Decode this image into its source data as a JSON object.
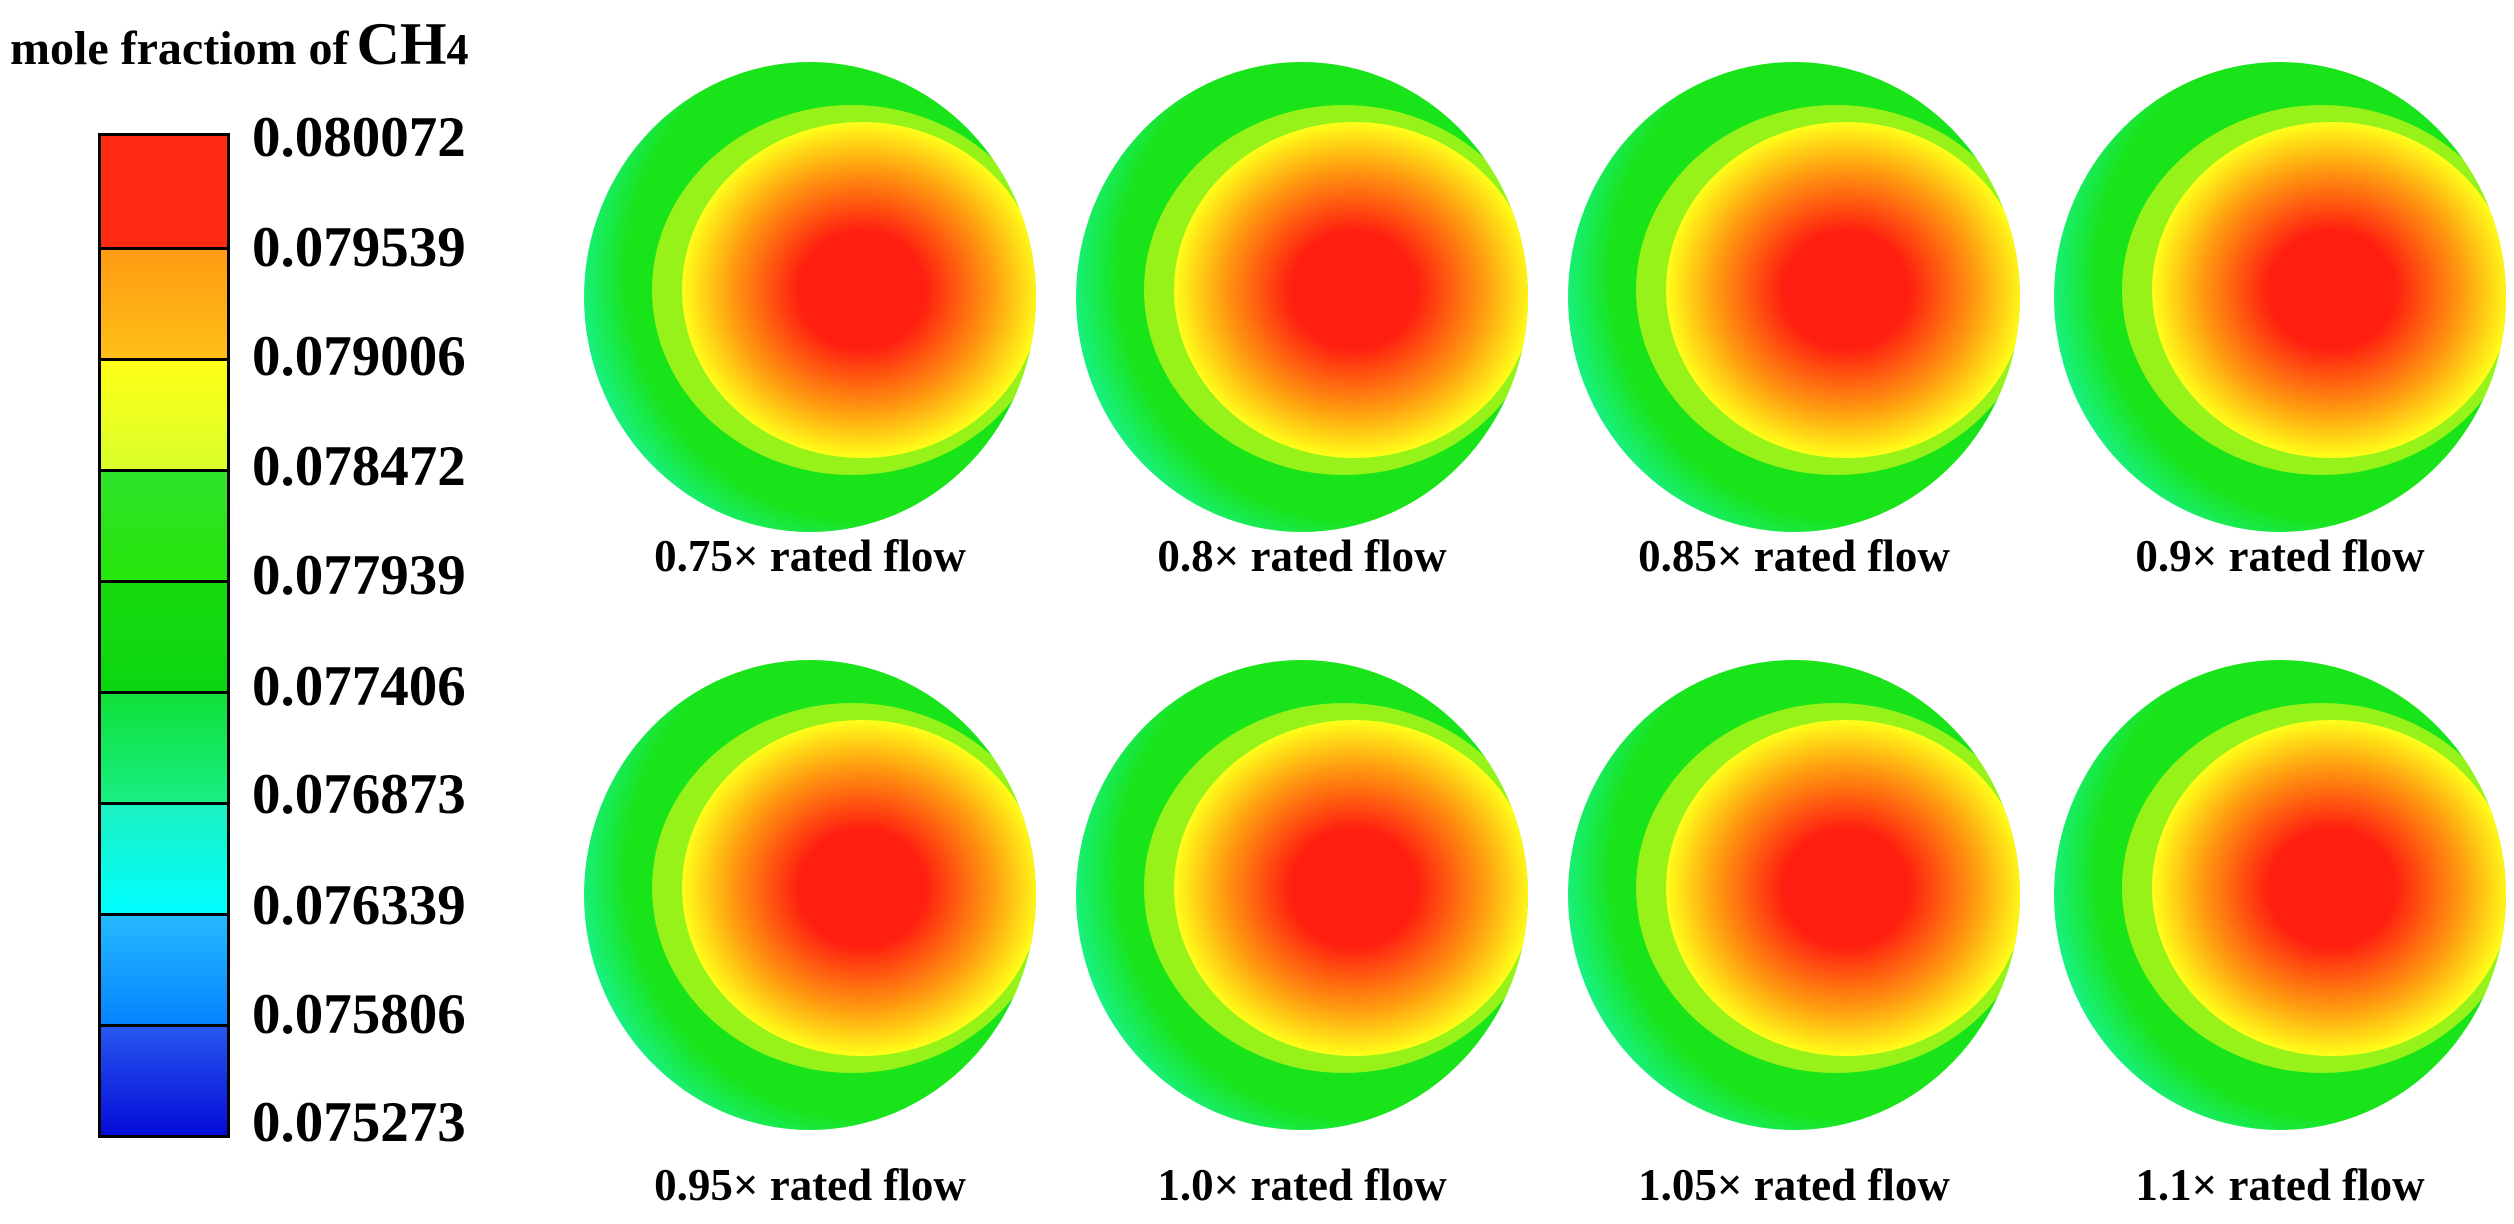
{
  "title": {
    "text": "mole fractiom of",
    "formula_main": "CH",
    "formula_sub": "4"
  },
  "colorbar": {
    "labels": [
      "0.080072",
      "0.079539",
      "0.079006",
      "0.078472",
      "0.077939",
      "0.077406",
      "0.076873",
      "0.076339",
      "0.075806",
      "0.075273"
    ],
    "bands": [
      {
        "top": "#ff2a12",
        "bottom": "#ff2a12"
      },
      {
        "top": "#ff9a12",
        "bottom": "#ffbf18"
      },
      {
        "top": "#ffff18",
        "bottom": "#d8ff2a"
      },
      {
        "top": "#2fe22a",
        "bottom": "#26e60c"
      },
      {
        "top": "#18d80e",
        "bottom": "#0ad710"
      },
      {
        "top": "#10e038",
        "bottom": "#18ef84"
      },
      {
        "top": "#1cf1c2",
        "bottom": "#00ffff"
      },
      {
        "top": "#25b9ff",
        "bottom": "#0583ff"
      },
      {
        "top": "#2657ef",
        "bottom": "#050bd8"
      }
    ]
  },
  "colors": {
    "red": "#ff1f10",
    "orange": "#ff9a10",
    "yellow": "#ffff1a",
    "green": "#19e319",
    "cyan": "#00ffff",
    "blue": "#0030ff"
  },
  "plots": [
    {
      "label": "0.75× rated flow"
    },
    {
      "label": "0.8× rated flow"
    },
    {
      "label": "0.85× rated flow"
    },
    {
      "label": "0.9× rated flow"
    },
    {
      "label": "0.95× rated flow"
    },
    {
      "label": "1.0× rated flow"
    },
    {
      "label": "1.05× rated flow"
    },
    {
      "label": "1.1× rated flow"
    }
  ]
}
